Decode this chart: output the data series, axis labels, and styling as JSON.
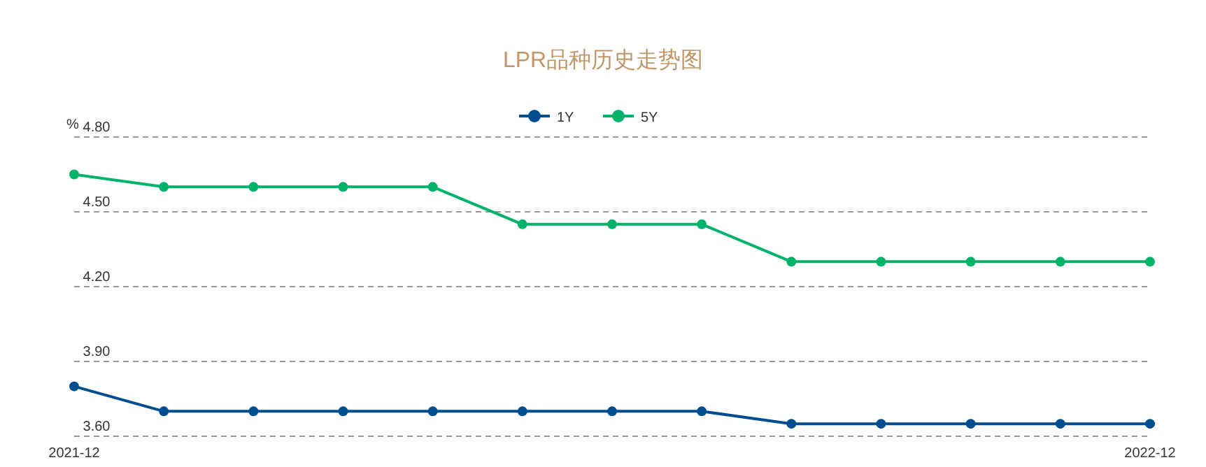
{
  "chart_data": {
    "type": "line",
    "title": "LPR品种历史走势图",
    "ylabel": "%",
    "categories": [
      "2021-12",
      null,
      null,
      null,
      null,
      null,
      null,
      null,
      null,
      null,
      null,
      null,
      "2022-12"
    ],
    "series": [
      {
        "name": "1Y",
        "color": "#004e8f",
        "values": [
          3.8,
          3.7,
          3.7,
          3.7,
          3.7,
          3.7,
          3.7,
          3.7,
          3.65,
          3.65,
          3.65,
          3.65,
          3.65
        ]
      },
      {
        "name": "5Y",
        "color": "#00b26a",
        "values": [
          4.65,
          4.6,
          4.6,
          4.6,
          4.6,
          4.45,
          4.45,
          4.45,
          4.3,
          4.3,
          4.3,
          4.3,
          4.3
        ]
      }
    ],
    "ylim": [
      3.6,
      4.8
    ],
    "yticks": [
      {
        "value": 3.6,
        "label": "3.60"
      },
      {
        "value": 3.9,
        "label": "3.90"
      },
      {
        "value": 4.2,
        "label": "4.20"
      },
      {
        "value": 4.5,
        "label": "4.50"
      },
      {
        "value": 4.8,
        "label": "4.80"
      }
    ],
    "grid": "y",
    "legend": "top",
    "marker": "circle",
    "line_style": "solid"
  }
}
